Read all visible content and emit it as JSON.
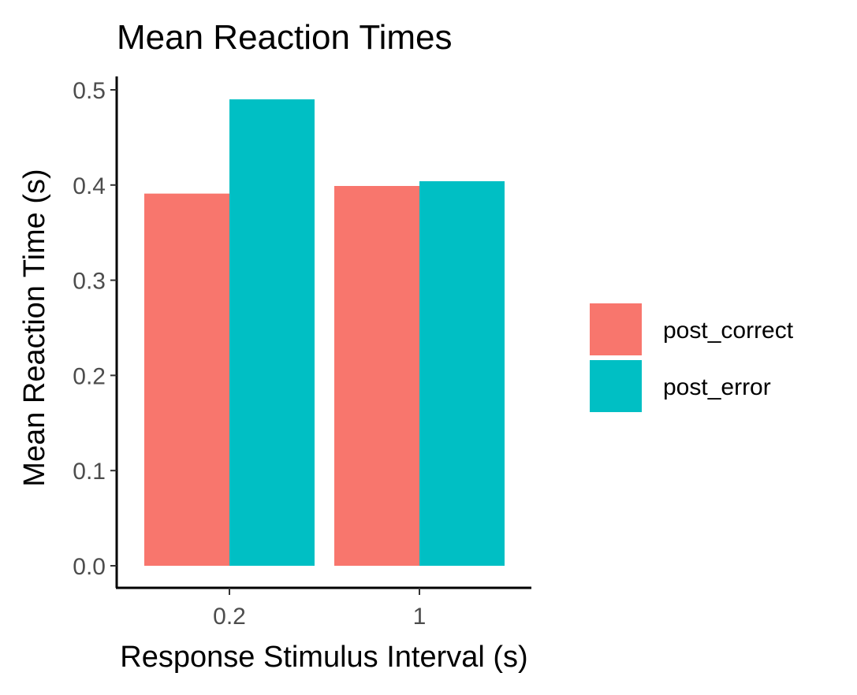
{
  "chart_data": {
    "type": "bar",
    "title": "Mean Reaction Times",
    "xlabel": "Response Stimulus Interval (s)",
    "ylabel": "Mean Reaction Time (s)",
    "categories": [
      "0.2",
      "1"
    ],
    "series": [
      {
        "name": "post_correct",
        "color": "#F8766D",
        "values": [
          0.391,
          0.399
        ]
      },
      {
        "name": "post_error",
        "color": "#00BFC4",
        "values": [
          0.49,
          0.404
        ]
      }
    ],
    "ylim": [
      0,
      0.5
    ],
    "yticks": [
      "0.0",
      "0.1",
      "0.2",
      "0.3",
      "0.4",
      "0.5"
    ],
    "grid": false,
    "legend_position": "right"
  }
}
